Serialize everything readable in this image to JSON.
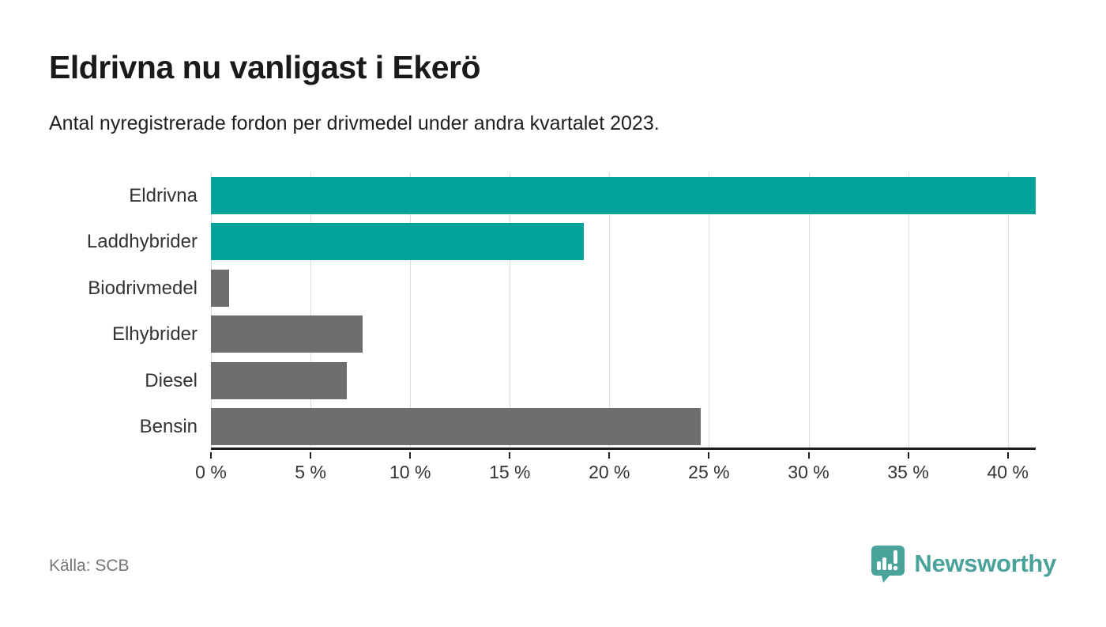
{
  "header": {
    "title": "Eldrivna nu vanligast i Ekerö",
    "subtitle": "Antal nyregistrerade fordon per drivmedel under andra kvartalet 2023."
  },
  "footer": {
    "source": "Källa: SCB",
    "brand_name": "Newsworthy",
    "brand_icon": "newsworthy-bar-chart-bubble-icon"
  },
  "colors": {
    "bar_highlight": "#00a29a",
    "bar_default": "#6e6e6e",
    "axis": "#1d1d1d",
    "gridline": "#dcdcdc",
    "label_text": "#333333",
    "muted_text": "#767676",
    "brand_teal": "#4aa39a"
  },
  "chart_data": {
    "type": "bar",
    "orientation": "horizontal",
    "title": "Eldrivna nu vanligast i Ekerö",
    "subtitle": "Antal nyregistrerade fordon per drivmedel under andra kvartalet 2023.",
    "source": "Källa: SCB",
    "categories": [
      "Eldrivna",
      "Laddhybrider",
      "Biodrivmedel",
      "Elhybrider",
      "Diesel",
      "Bensin"
    ],
    "values": [
      41.4,
      18.7,
      0.9,
      7.6,
      6.8,
      24.6
    ],
    "unit": "%",
    "bar_colors": [
      "#00a29a",
      "#00a29a",
      "#6e6e6e",
      "#6e6e6e",
      "#6e6e6e",
      "#6e6e6e"
    ],
    "xlabel": "",
    "ylabel": "",
    "xlim": [
      0,
      41.4
    ],
    "x_ticks": [
      0,
      5,
      10,
      15,
      20,
      25,
      30,
      35,
      40
    ],
    "x_tick_suffix": " %",
    "grid": "vertical-only",
    "legend": "none"
  }
}
